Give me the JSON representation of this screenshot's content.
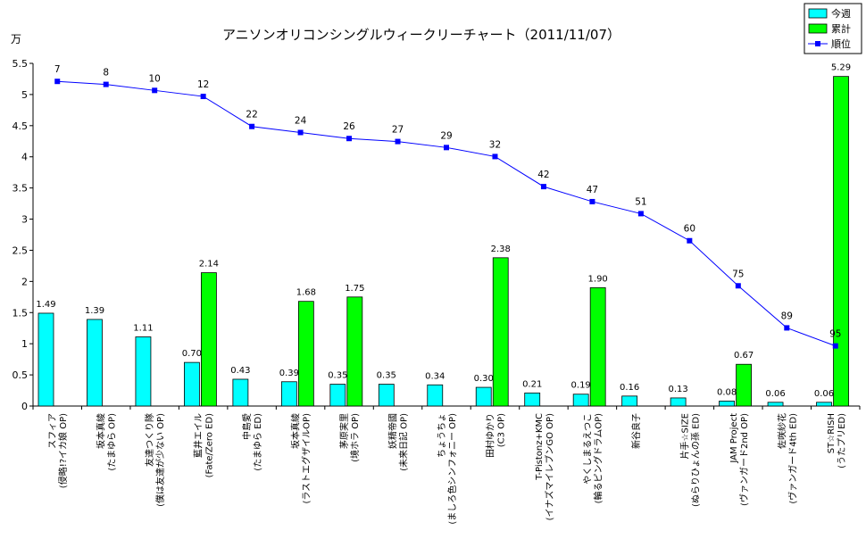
{
  "chart_data": {
    "type": "bar",
    "title": "アニソンオリコンシングルウィークリーチャート（2011/11/07）",
    "y_unit": "万",
    "ylim": [
      0,
      5.5
    ],
    "y_ticks": [
      "0",
      "0.5",
      "1",
      "1.5",
      "2",
      "2.5",
      "3",
      "3.5",
      "4",
      "4.5",
      "5",
      "5.5"
    ],
    "ylim_rank": [
      1,
      115
    ],
    "legend_position": "top-right",
    "colors": {
      "weekly": "#00ffff",
      "cumulative": "#00ff00",
      "rank": "#0000ff"
    },
    "series": [
      {
        "name": "今週",
        "type": "bar",
        "values": [
          1.49,
          1.39,
          1.11,
          0.7,
          0.43,
          0.39,
          0.35,
          0.35,
          0.34,
          0.3,
          0.21,
          0.19,
          0.16,
          0.13,
          0.08,
          0.06,
          0.06
        ]
      },
      {
        "name": "累計",
        "type": "bar",
        "values": [
          null,
          null,
          null,
          2.14,
          null,
          1.68,
          1.75,
          null,
          null,
          2.38,
          null,
          1.9,
          null,
          null,
          0.67,
          null,
          5.29
        ]
      },
      {
        "name": "順位",
        "type": "line",
        "axis": "secondary-reversed",
        "values": [
          7,
          8,
          10,
          12,
          22,
          24,
          26,
          27,
          29,
          32,
          42,
          47,
          51,
          60,
          75,
          89,
          95
        ]
      }
    ],
    "weekly_labels": [
      "1.49",
      "1.39",
      "1.11",
      "0.70",
      "0.43",
      "0.39",
      "0.35",
      "0.35",
      "0.34",
      "0.30",
      "0.21",
      "0.19",
      "0.16",
      "0.13",
      "0.08",
      "0.06",
      "0.06"
    ],
    "cumulative_labels": [
      "",
      "",
      "",
      "2.14",
      "",
      "1.68",
      "1.75",
      "",
      "",
      "2.38",
      "",
      "1.90",
      "",
      "",
      "0.67",
      "",
      "5.29"
    ],
    "rank_labels": [
      "7",
      "8",
      "10",
      "12",
      "22",
      "24",
      "26",
      "27",
      "29",
      "32",
      "42",
      "47",
      "51",
      "60",
      "75",
      "89",
      "95"
    ],
    "categories": [
      [
        "スフィア",
        "(侵略!?イカ娘 OP)"
      ],
      [
        "坂本真綾",
        "(たまゆら OP)"
      ],
      [
        "友達つくり隊",
        "(僕は友達が少ない OP)"
      ],
      [
        "藍井エイル",
        "(Fate/Zero ED)"
      ],
      [
        "中島愛",
        "(たまゆら ED)"
      ],
      [
        "坂本真綾",
        "(ラストエグザイルOP)"
      ],
      [
        "茅原実里",
        "(境ホラ OP)"
      ],
      [
        "妖精帝國",
        "(未来日記 OP)"
      ],
      [
        "ちょうちょ",
        "(ましろ色シンフォニー OP)"
      ],
      [
        "田村ゆかり",
        "(C3 OP)"
      ],
      [
        "T-Pistonz+KMC",
        "(イナズマイレブンGO OP)"
      ],
      [
        "やくしまるえつこ",
        "(輪るピングドラムOP)"
      ],
      [
        "新谷良子",
        ""
      ],
      [
        "片手☆SIZE",
        "(ぬらりひょんの孫 ED)"
      ],
      [
        "JAM Project",
        "(ヴァンガード2nd OP)"
      ],
      [
        "佐咲紗花",
        "(ヴァンガード4th ED)"
      ],
      [
        "ST☆RISH",
        "(うたプリED)"
      ]
    ]
  }
}
